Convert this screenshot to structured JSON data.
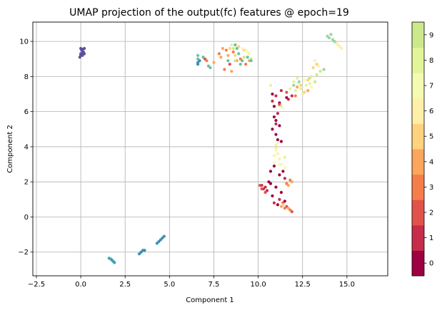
{
  "chart_data": {
    "type": "scatter",
    "title": "UMAP projection of the output(fc) features @ epoch=19",
    "xlabel": "Component 1",
    "ylabel": "Component 2",
    "xlim": [
      -2.7,
      17.3
    ],
    "ylim": [
      -3.35,
      11.1
    ],
    "x_ticks": [
      -2.5,
      0.0,
      2.5,
      5.0,
      7.5,
      10.0,
      12.5,
      15.0
    ],
    "x_tick_labels": [
      "−2.5",
      "0.0",
      "2.5",
      "5.0",
      "7.5",
      "10.0",
      "12.5",
      "15.0"
    ],
    "y_ticks": [
      -2,
      0,
      2,
      4,
      6,
      8,
      10
    ],
    "y_tick_labels": [
      "−2",
      "0",
      "2",
      "4",
      "6",
      "8",
      "10"
    ],
    "grid": true,
    "colormap": "Spectral",
    "colorbar": {
      "labels": [
        "0",
        "1",
        "2",
        "3",
        "4",
        "5",
        "6",
        "7",
        "8",
        "9"
      ],
      "colors": [
        "#9e0142",
        "#c72c4a",
        "#e1524a",
        "#f57d4a",
        "#fca55d",
        "#fed27f",
        "#fef0a7",
        "#f4fbb0",
        "#e2f599",
        "#cbe98b"
      ]
    },
    "series": [
      {
        "label": "0",
        "color": "#9e0142",
        "points": [
          [
            10.9,
            5.7
          ],
          [
            11.0,
            5.5
          ],
          [
            11.2,
            5.2
          ],
          [
            10.8,
            5.0
          ],
          [
            11.0,
            4.7
          ],
          [
            11.1,
            4.4
          ],
          [
            11.3,
            4.3
          ],
          [
            10.9,
            2.9
          ],
          [
            10.7,
            2.6
          ],
          [
            11.2,
            2.4
          ],
          [
            10.6,
            2.0
          ],
          [
            11.0,
            1.7
          ],
          [
            11.3,
            1.4
          ],
          [
            10.8,
            1.2
          ],
          [
            11.5,
            0.9
          ],
          [
            11.1,
            0.7
          ],
          [
            10.7,
            1.9
          ],
          [
            11.4,
            2.6
          ],
          [
            10.8,
            7.0
          ],
          [
            11.2,
            6.5
          ],
          [
            10.9,
            6.3
          ],
          [
            11.6,
            6.8
          ]
        ]
      },
      {
        "label": "1",
        "color": "#c72c4a",
        "points": [
          [
            10.2,
            1.8
          ],
          [
            10.3,
            1.6
          ],
          [
            10.5,
            1.5
          ],
          [
            11.0,
            6.9
          ],
          [
            11.3,
            7.2
          ],
          [
            10.8,
            6.6
          ],
          [
            11.7,
            6.7
          ],
          [
            11.9,
            6.9
          ],
          [
            11.1,
            5.9
          ],
          [
            11.0,
            5.3
          ],
          [
            11.2,
            1.0
          ],
          [
            10.9,
            0.8
          ],
          [
            11.5,
            2.2
          ],
          [
            10.4,
            1.7
          ]
        ]
      },
      {
        "label": "2",
        "color": "#e1524a",
        "points": [
          [
            10.1,
            1.8
          ],
          [
            10.2,
            1.6
          ],
          [
            10.4,
            1.4
          ],
          [
            11.4,
            0.8
          ],
          [
            11.6,
            0.6
          ],
          [
            11.9,
            0.3
          ],
          [
            7.0,
            9.0
          ],
          [
            8.4,
            8.7
          ],
          [
            11.6,
            7.1
          ],
          [
            11.2,
            6.4
          ]
        ]
      },
      {
        "label": "3",
        "color": "#f57d4a",
        "points": [
          [
            6.9,
            9.1
          ],
          [
            7.1,
            8.9
          ],
          [
            7.8,
            9.3
          ],
          [
            8.2,
            9.5
          ],
          [
            8.6,
            9.4
          ],
          [
            9.0,
            9.0
          ],
          [
            11.5,
            0.5
          ],
          [
            11.8,
            0.4
          ],
          [
            11.6,
            1.9
          ],
          [
            11.8,
            2.1
          ],
          [
            8.1,
            8.4
          ],
          [
            9.3,
            8.7
          ],
          [
            12.1,
            6.9
          ]
        ]
      },
      {
        "label": "4",
        "color": "#fca55d",
        "points": [
          [
            7.5,
            8.8
          ],
          [
            7.9,
            9.1
          ],
          [
            8.3,
            9.2
          ],
          [
            8.8,
            8.9
          ],
          [
            9.5,
            8.9
          ],
          [
            11.3,
            0.6
          ],
          [
            11.7,
            0.5
          ],
          [
            11.7,
            1.8
          ],
          [
            11.9,
            2.0
          ],
          [
            8.5,
            8.3
          ],
          [
            8.0,
            9.6
          ],
          [
            12.2,
            7.4
          ],
          [
            12.8,
            7.2
          ]
        ]
      },
      {
        "label": "5",
        "color": "#fed27f",
        "points": [
          [
            8.4,
            9.6
          ],
          [
            8.9,
            9.7
          ],
          [
            9.2,
            9.5
          ],
          [
            8.7,
            9.2
          ],
          [
            12.8,
            7.8
          ],
          [
            12.4,
            7.5
          ],
          [
            13.1,
            8.5
          ],
          [
            13.3,
            8.7
          ],
          [
            12.6,
            7.1
          ],
          [
            11.4,
            0.7
          ]
        ]
      },
      {
        "label": "6",
        "color": "#fef0a7",
        "points": [
          [
            9.3,
            9.5
          ],
          [
            9.5,
            9.3
          ],
          [
            13.2,
            8.9
          ],
          [
            13.4,
            8.6
          ],
          [
            14.5,
            9.8
          ],
          [
            14.6,
            9.7
          ],
          [
            14.7,
            9.6
          ],
          [
            14.4,
            9.9
          ],
          [
            14.3,
            10.0
          ],
          [
            11.0,
            3.9
          ],
          [
            11.1,
            3.6
          ],
          [
            11.2,
            3.3
          ],
          [
            11.0,
            4.1
          ],
          [
            11.3,
            3.0
          ],
          [
            10.9,
            3.5
          ]
        ]
      },
      {
        "label": "7",
        "color": "#f4fbb0",
        "points": [
          [
            8.8,
            9.8
          ],
          [
            9.1,
            9.6
          ],
          [
            9.4,
            9.4
          ],
          [
            12.3,
            7.6
          ],
          [
            12.6,
            7.8
          ],
          [
            13.0,
            7.4
          ],
          [
            11.2,
            3.0
          ],
          [
            11.0,
            3.8
          ],
          [
            10.9,
            3.1
          ],
          [
            11.1,
            4.2
          ],
          [
            11.5,
            2.8
          ]
        ]
      },
      {
        "label": "8",
        "color": "#e2f599",
        "points": [
          [
            8.5,
            9.8
          ],
          [
            12.0,
            7.7
          ],
          [
            12.2,
            7.9
          ],
          [
            12.4,
            7.3
          ],
          [
            12.7,
            7.5
          ],
          [
            12.9,
            7.6
          ],
          [
            12.5,
            7.0
          ],
          [
            11.8,
            7.3
          ],
          [
            13.0,
            8.0
          ],
          [
            11.5,
            3.4
          ],
          [
            10.7,
            7.5
          ],
          [
            11.3,
            6.3
          ],
          [
            12.1,
            7.2
          ]
        ]
      },
      {
        "label": "9",
        "color": "#cbe98b",
        "points": [
          [
            8.7,
            8.9
          ],
          [
            9.2,
            9.1
          ],
          [
            9.6,
            9.0
          ],
          [
            8.6,
            9.6
          ],
          [
            13.3,
            8.1
          ],
          [
            13.5,
            8.3
          ],
          [
            12.9,
            7.9
          ],
          [
            13.2,
            7.7
          ]
        ]
      },
      {
        "label": "",
        "color": "#99d5a4",
        "points": [
          [
            13.9,
            10.3
          ],
          [
            14.1,
            10.4
          ],
          [
            14.0,
            10.2
          ],
          [
            14.2,
            10.1
          ],
          [
            14.3,
            10.0
          ],
          [
            13.7,
            8.4
          ],
          [
            12.0,
            7.5
          ],
          [
            12.3,
            7.7
          ]
        ]
      },
      {
        "label": "",
        "color": "#66c2a5",
        "points": [
          [
            6.6,
            9.2
          ],
          [
            6.6,
            9.0
          ],
          [
            8.7,
            9.8
          ],
          [
            8.9,
            9.3
          ],
          [
            9.1,
            8.9
          ],
          [
            9.4,
            9.1
          ],
          [
            9.6,
            8.9
          ],
          [
            9.0,
            8.7
          ],
          [
            8.3,
            8.9
          ],
          [
            7.2,
            8.6
          ],
          [
            7.3,
            8.5
          ],
          [
            8.8,
            9.6
          ],
          [
            6.9,
            9.1
          ]
        ]
      },
      {
        "label": "",
        "color": "#3a90b6",
        "points": [
          [
            6.6,
            8.8
          ],
          [
            6.6,
            8.7
          ],
          [
            6.7,
            8.9
          ],
          [
            4.6,
            -1.2
          ],
          [
            4.5,
            -1.3
          ],
          [
            4.4,
            -1.4
          ],
          [
            4.3,
            -1.5
          ],
          [
            4.7,
            -1.1
          ],
          [
            3.5,
            -1.9
          ],
          [
            3.4,
            -2.0
          ],
          [
            3.3,
            -2.1
          ],
          [
            3.6,
            -1.9
          ]
        ]
      },
      {
        "label": "",
        "color": "#42a2b4",
        "points": [
          [
            1.7,
            -2.4
          ],
          [
            1.8,
            -2.5
          ],
          [
            1.9,
            -2.6
          ],
          [
            1.85,
            -2.55
          ],
          [
            1.75,
            -2.45
          ],
          [
            1.6,
            -2.35
          ]
        ]
      },
      {
        "label": "",
        "color": "#5e4fa2",
        "points": [
          [
            0.0,
            9.6
          ],
          [
            0.1,
            9.55
          ],
          [
            0.2,
            9.3
          ],
          [
            0.15,
            9.4
          ],
          [
            0.0,
            9.2
          ],
          [
            -0.05,
            9.1
          ],
          [
            0.1,
            9.35
          ],
          [
            0.05,
            9.5
          ],
          [
            0.2,
            9.6
          ],
          [
            0.0,
            9.3
          ],
          [
            0.1,
            9.2
          ]
        ]
      }
    ]
  }
}
